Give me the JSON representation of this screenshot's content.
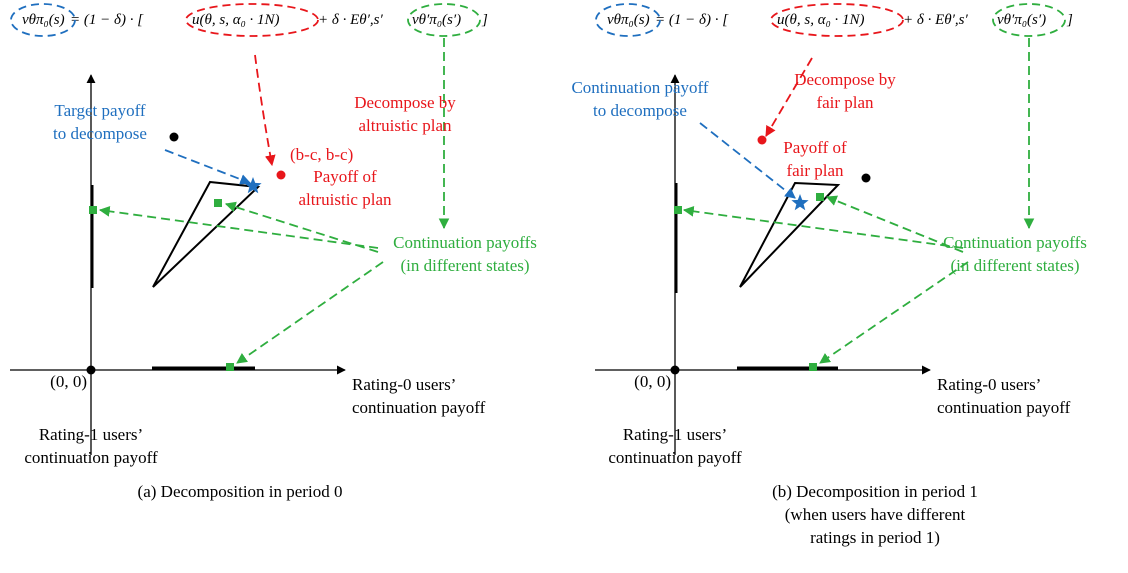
{
  "panels": [
    {
      "equation": [
        "vθπ₀(s)",
        "= (1 − δ) · [",
        "u(θ, s, α₀ · 1N)",
        "+ δ · Eθ′,s′",
        "vθ′π₀(s′)",
        "]"
      ],
      "target_label": [
        "Target payoff",
        "to decompose"
      ],
      "decompose_label": [
        "Decompose by",
        "altruistic plan"
      ],
      "point_label": "(b-c, b-c)",
      "payoff_label": [
        "Payoff of",
        "altruistic plan"
      ],
      "continuation_label": [
        "Continuation payoffs",
        "(in different states)"
      ],
      "origin": "(0, 0)",
      "x_axis_label": [
        "Rating-0 users’",
        "continuation payoff"
      ],
      "y_axis_label": [
        "Rating-1 users’",
        "continuation payoff"
      ],
      "caption": [
        "(a) Decomposition in period 0"
      ]
    },
    {
      "equation": [
        "vθπ₀(s)",
        "= (1 − δ) · [",
        "u(θ, s, α₀ · 1N)",
        "+ δ · Eθ′,s′",
        "vθ′π₀(s′)",
        "]"
      ],
      "target_label": [
        "Continuation payoff",
        "to decompose"
      ],
      "decompose_label": [
        "Decompose by",
        "fair plan"
      ],
      "payoff_label": [
        "Payoff of",
        "fair plan"
      ],
      "continuation_label": [
        "Continuation payoffs",
        "(in different states)"
      ],
      "origin": "(0, 0)",
      "x_axis_label": [
        "Rating-0 users’",
        "continuation payoff"
      ],
      "y_axis_label": [
        "Rating-1 users’",
        "continuation payoff"
      ],
      "caption": [
        "(b) Decomposition in period 1",
        "(when users have different",
        "ratings in period 1)"
      ]
    }
  ]
}
